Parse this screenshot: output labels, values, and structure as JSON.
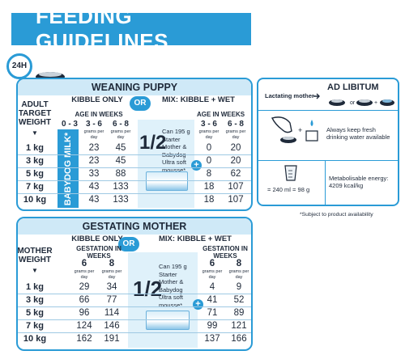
{
  "title": "FEEDING GUIDELINES",
  "clock_label": "24H",
  "weaning": {
    "title": "WEANING PUPPY",
    "adult_weight_label": "ADULT\nTARGET\nWEIGHT",
    "kibble_only": "KIBBLE ONLY",
    "mix": "MIX: KIBBLE + WET",
    "or": "OR",
    "age_in_weeks": "AGE IN WEEKS",
    "age_ranges": [
      "0 - 3",
      "3 - 6",
      "6 - 8"
    ],
    "age_ranges_mix": [
      "3 - 6",
      "6 - 8"
    ],
    "unit": "grams per day",
    "babydog": "BABYDOG MILK*",
    "half": "1/2",
    "can_text": "Can 195 g Starter Mother & Babydog Ultra soft mousse*",
    "rows": [
      {
        "weight": "1 kg",
        "k36": "23",
        "k68": "45",
        "m36": "0",
        "m68": "20"
      },
      {
        "weight": "3 kg",
        "k36": "23",
        "k68": "45",
        "m36": "0",
        "m68": "20"
      },
      {
        "weight": "5 kg",
        "k36": "33",
        "k68": "88",
        "m36": "8",
        "m68": "62"
      },
      {
        "weight": "7 kg",
        "k36": "43",
        "k68": "133",
        "m36": "18",
        "m68": "107"
      },
      {
        "weight": "10 kg",
        "k36": "43",
        "k68": "133",
        "m36": "18",
        "m68": "107"
      }
    ]
  },
  "lactating": {
    "label": "Lactating mother",
    "ad_libitum": "AD LIBITUM",
    "water": "Always keep fresh drinking water available",
    "measure": "= 240 ml = 98 g",
    "energy": "Metabolisable energy: 4209 kcal/kg"
  },
  "footnote": "*Subject to product availability",
  "gestating": {
    "title": "GESTATING MOTHER",
    "mother_weight_label": "MOTHER\nWEIGHT",
    "kibble_only": "KIBBLE ONLY",
    "mix": "MIX: KIBBLE + WET",
    "or": "OR",
    "gestation": "GESTATION IN WEEKS",
    "weeks": [
      "6",
      "8"
    ],
    "unit": "grams per day",
    "half": "1/2",
    "can_text": "Can 195 g Starter Mother & Babydog Ultra soft mousse*",
    "rows": [
      {
        "weight": "1 kg",
        "k6": "29",
        "k8": "34",
        "m6": "4",
        "m8": "9"
      },
      {
        "weight": "3 kg",
        "k6": "66",
        "k8": "77",
        "m6": "41",
        "m8": "52"
      },
      {
        "weight": "5 kg",
        "k6": "96",
        "k8": "114",
        "m6": "71",
        "m8": "89"
      },
      {
        "weight": "7 kg",
        "k6": "124",
        "k8": "146",
        "m6": "99",
        "m8": "121"
      },
      {
        "weight": "10 kg",
        "k6": "162",
        "k8": "191",
        "m6": "137",
        "m8": "166"
      }
    ]
  },
  "colors": {
    "accent": "#2a9bd6",
    "light": "#cfe9f7"
  }
}
